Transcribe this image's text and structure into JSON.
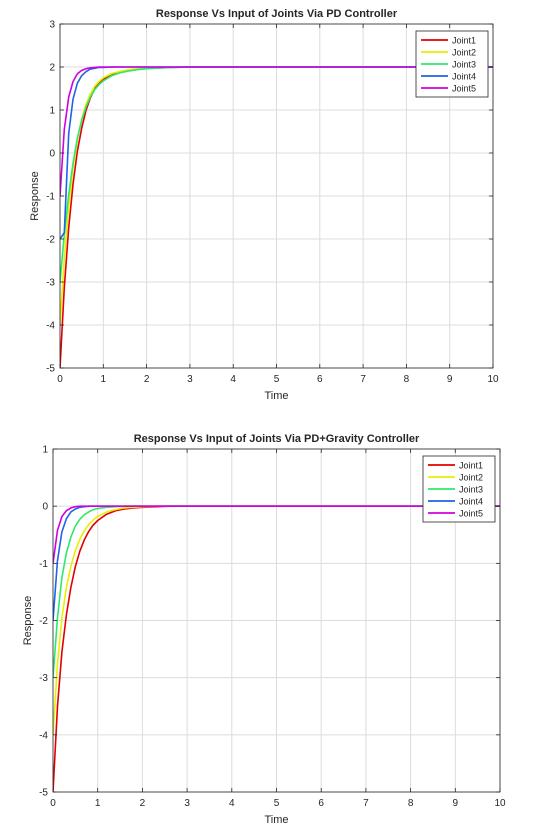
{
  "chart_data": [
    {
      "type": "line",
      "title": "Response Vs Input of Joints Via PD Controller",
      "xlabel": "Time",
      "ylabel": "Response",
      "xlim": [
        0,
        10
      ],
      "ylim": [
        -5,
        3
      ],
      "xticks": [
        0,
        1,
        2,
        3,
        4,
        5,
        6,
        7,
        8,
        9,
        10
      ],
      "yticks": [
        3,
        2,
        1,
        0,
        -1,
        -2,
        -3,
        -4,
        -5
      ],
      "grid": true,
      "legend_position": "top-right",
      "x": [
        0,
        0.1,
        0.2,
        0.3,
        0.4,
        0.5,
        0.6,
        0.7,
        0.8,
        0.9,
        1.0,
        1.2,
        1.4,
        1.6,
        1.8,
        2.0,
        2.3,
        2.6,
        3.0,
        3.5,
        4,
        5,
        6,
        7,
        8,
        9,
        10
      ],
      "series": [
        {
          "name": "Joint1",
          "color": "#e30000",
          "values": [
            -5,
            -3.13,
            -1.74,
            -0.73,
            0.03,
            0.58,
            0.99,
            1.28,
            1.49,
            1.62,
            1.71,
            1.82,
            1.89,
            1.93,
            1.95,
            1.97,
            1.98,
            1.99,
            2.0,
            2.0,
            2.0,
            2.0,
            2.0,
            2.0,
            2.0,
            2.0,
            2.0
          ]
        },
        {
          "name": "Joint2",
          "color": "#e6f000",
          "values": [
            -4,
            -2.45,
            -1.25,
            -0.36,
            0.3,
            0.79,
            1.13,
            1.37,
            1.55,
            1.66,
            1.75,
            1.85,
            1.9,
            1.94,
            1.96,
            1.97,
            1.99,
            1.99,
            2.0,
            2.0,
            2.0,
            2.0,
            2.0,
            2.0,
            2.0,
            2.0,
            2.0
          ]
        },
        {
          "name": "Joint3",
          "color": "#2ee86e",
          "values": [
            -3,
            -1.9,
            -0.97,
            -0.24,
            0.34,
            0.76,
            1.07,
            1.3,
            1.47,
            1.59,
            1.68,
            1.8,
            1.87,
            1.91,
            1.94,
            1.96,
            1.98,
            1.99,
            2.0,
            2.0,
            2.0,
            2.0,
            2.0,
            2.0,
            2.0,
            2.0,
            2.0
          ]
        },
        {
          "name": "Joint4",
          "color": "#1f63e6",
          "values": [
            -2,
            -1.85,
            0.45,
            1.25,
            1.62,
            1.8,
            1.89,
            1.95,
            1.97,
            1.99,
            1.99,
            2.0,
            2.0,
            2.0,
            2.0,
            2.0,
            2.0,
            2.0,
            2.0,
            2.0,
            2.0,
            2.0,
            2.0,
            2.0,
            2.0,
            2.0,
            2.0
          ]
        },
        {
          "name": "Joint5",
          "color": "#d000e0",
          "values": [
            -1,
            0.55,
            1.3,
            1.66,
            1.84,
            1.92,
            1.96,
            1.98,
            1.99,
            2.0,
            2.0,
            2.0,
            2.0,
            2.0,
            2.0,
            2.0,
            2.0,
            2.0,
            2.0,
            2.0,
            2.0,
            2.0,
            2.0,
            2.0,
            2.0,
            2.0,
            2.0
          ]
        }
      ]
    },
    {
      "type": "line",
      "title": "Response Vs Input of Joints Via PD+Gravity Controller",
      "xlabel": "Time",
      "ylabel": "Response",
      "xlim": [
        0,
        10
      ],
      "ylim": [
        -5,
        1
      ],
      "xticks": [
        0,
        1,
        2,
        3,
        4,
        5,
        6,
        7,
        8,
        9,
        10
      ],
      "yticks": [
        1,
        0,
        -1,
        -2,
        -3,
        -4,
        -5
      ],
      "grid": true,
      "legend_position": "top-right",
      "x": [
        0,
        0.1,
        0.2,
        0.3,
        0.4,
        0.5,
        0.6,
        0.7,
        0.8,
        0.9,
        1.0,
        1.2,
        1.4,
        1.6,
        1.8,
        2.0,
        2.3,
        2.6,
        3.0,
        3.5,
        4,
        5,
        6,
        7,
        8,
        9,
        10
      ],
      "series": [
        {
          "name": "Joint1",
          "color": "#e30000",
          "values": [
            -5,
            -3.5,
            -2.55,
            -1.9,
            -1.42,
            -1.06,
            -0.79,
            -0.59,
            -0.44,
            -0.33,
            -0.25,
            -0.14,
            -0.08,
            -0.05,
            -0.03,
            -0.02,
            -0.01,
            0,
            0,
            0,
            0,
            0,
            0,
            0,
            0,
            0,
            0
          ]
        },
        {
          "name": "Joint2",
          "color": "#e6f000",
          "values": [
            -4,
            -2.75,
            -1.95,
            -1.42,
            -1.05,
            -0.78,
            -0.58,
            -0.43,
            -0.32,
            -0.24,
            -0.18,
            -0.1,
            -0.06,
            -0.03,
            -0.02,
            -0.01,
            0,
            0,
            0,
            0,
            0,
            0,
            0,
            0,
            0,
            0,
            0
          ]
        },
        {
          "name": "Joint3",
          "color": "#2ee86e",
          "values": [
            -3,
            -1.95,
            -1.25,
            -0.82,
            -0.54,
            -0.35,
            -0.23,
            -0.15,
            -0.1,
            -0.06,
            -0.04,
            -0.02,
            -0.01,
            0,
            0,
            0,
            0,
            0,
            0,
            0,
            0,
            0,
            0,
            0,
            0,
            0,
            0
          ]
        },
        {
          "name": "Joint4",
          "color": "#1f63e6",
          "values": [
            -2,
            -0.95,
            -0.45,
            -0.22,
            -0.1,
            -0.05,
            -0.02,
            -0.01,
            0,
            0,
            0,
            0,
            0,
            0,
            0,
            0,
            0,
            0,
            0,
            0,
            0,
            0,
            0,
            0,
            0,
            0,
            0
          ]
        },
        {
          "name": "Joint5",
          "color": "#d000e0",
          "values": [
            -1,
            -0.42,
            -0.18,
            -0.08,
            -0.03,
            -0.01,
            0,
            0,
            0,
            0,
            0,
            0,
            0,
            0,
            0,
            0,
            0,
            0,
            0,
            0,
            0,
            0,
            0,
            0,
            0,
            0,
            0
          ]
        }
      ]
    }
  ]
}
